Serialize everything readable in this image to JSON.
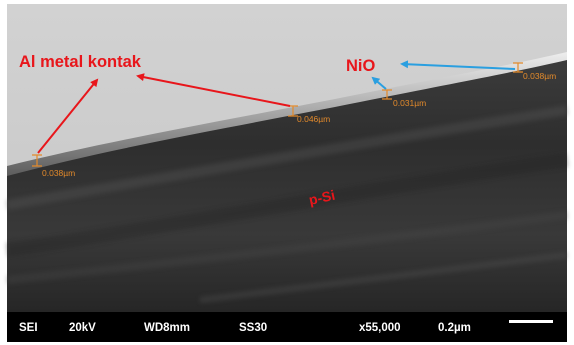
{
  "image": {
    "subject": "SEM cross-section micrograph",
    "colors": {
      "annotation_red": "#e8161b",
      "annotation_blue": "#2a9fe0",
      "measurement_orange": "#e38a2b",
      "databar_bg": "#000000",
      "databar_text": "#ffffff"
    }
  },
  "labels": {
    "al_contact": "Al metal kontak",
    "nio": "NiO",
    "substrate": "p-Si"
  },
  "measurements": [
    "0.038µm",
    "0.046µm",
    "0.031µm",
    "0.038µm"
  ],
  "data_bar": {
    "detector": "SEI",
    "voltage": "20kV",
    "working_distance": "WD8mm",
    "spot_size": "SS30",
    "magnification": "x55,000",
    "scale": "0.2µm"
  }
}
